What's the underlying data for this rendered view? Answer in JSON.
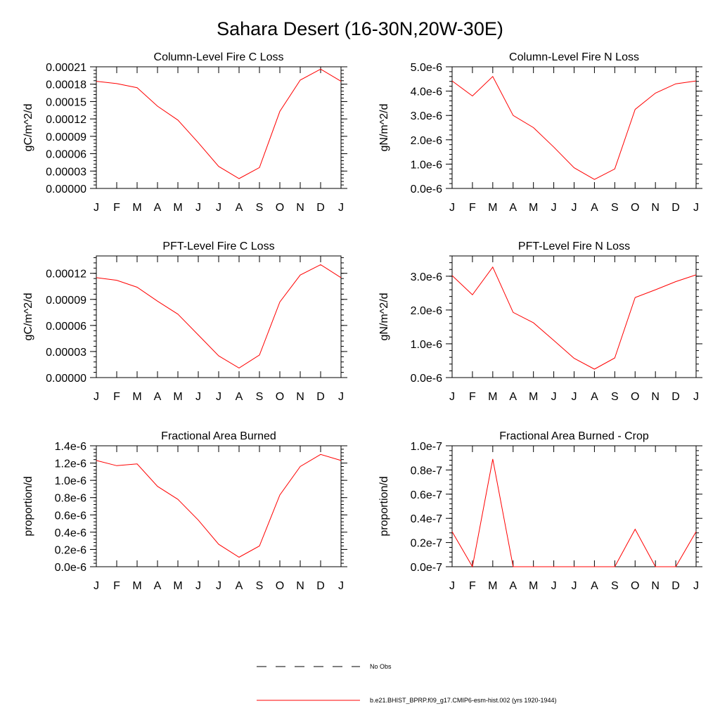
{
  "figure": {
    "title": "Sahara Desert (16-30N,20W-30E)"
  },
  "legend": {
    "items": [
      {
        "label": "No Obs",
        "style": "dashed",
        "color": "#000000"
      },
      {
        "label": "b.e21.BHIST_BPRP.f09_g17.CMIP6-esm-hist.002 (yrs 1920-1944)",
        "style": "solid",
        "color": "#ff0000"
      }
    ]
  },
  "chart_data": [
    {
      "type": "line",
      "title": "Column-Level Fire C Loss",
      "ylabel": "gC/m^2/d",
      "categories": [
        "J",
        "F",
        "M",
        "A",
        "M",
        "J",
        "J",
        "A",
        "S",
        "O",
        "N",
        "D",
        "J"
      ],
      "ylim": [
        0,
        0.00021
      ],
      "yticks": [
        0,
        3e-05,
        6e-05,
        9e-05,
        0.00012,
        0.00015,
        0.00018,
        0.00021
      ],
      "ytick_labels": [
        "0.00000",
        "0.00003",
        "0.00006",
        "0.00009",
        "0.00012",
        "0.00015",
        "0.00018",
        "0.00021"
      ],
      "series": [
        {
          "color": "#ff0000",
          "values": [
            0.000185,
            0.000181,
            0.000174,
            0.000142,
            0.000118,
            7.9e-05,
            3.8e-05,
            1.7e-05,
            3.6e-05,
            0.000133,
            0.000187,
            0.000206,
            0.000185
          ]
        }
      ]
    },
    {
      "type": "line",
      "title": "Column-Level Fire N Loss",
      "ylabel": "gN/m^2/d",
      "categories": [
        "J",
        "F",
        "M",
        "A",
        "M",
        "J",
        "J",
        "A",
        "S",
        "O",
        "N",
        "D",
        "J"
      ],
      "ylim": [
        0,
        5e-06
      ],
      "yticks": [
        0,
        1e-06,
        2e-06,
        3e-06,
        4e-06,
        5e-06
      ],
      "ytick_labels": [
        "0.0e-6",
        "1.0e-6",
        "2.0e-6",
        "3.0e-6",
        "4.0e-6",
        "5.0e-6"
      ],
      "series": [
        {
          "color": "#ff0000",
          "values": [
            4.42e-06,
            3.8e-06,
            4.6e-06,
            3e-06,
            2.5e-06,
            1.7e-06,
            8.5e-07,
            3.7e-07,
            8e-07,
            3.25e-06,
            3.92e-06,
            4.3e-06,
            4.42e-06
          ]
        }
      ]
    },
    {
      "type": "line",
      "title": "PFT-Level Fire C Loss",
      "ylabel": "gC/m^2/d",
      "categories": [
        "J",
        "F",
        "M",
        "A",
        "M",
        "J",
        "J",
        "A",
        "S",
        "O",
        "N",
        "D",
        "J"
      ],
      "ylim": [
        0,
        0.00014
      ],
      "yticks": [
        0,
        3e-05,
        6e-05,
        9e-05,
        0.00012
      ],
      "ytick_labels": [
        "0.00000",
        "0.00003",
        "0.00006",
        "0.00009",
        "0.00012"
      ],
      "series": [
        {
          "color": "#ff0000",
          "values": [
            0.000115,
            0.000112,
            0.000104,
            8.8e-05,
            7.3e-05,
            4.9e-05,
            2.5e-05,
            1.1e-05,
            2.6e-05,
            8.7e-05,
            0.000118,
            0.00013,
            0.000115
          ]
        }
      ]
    },
    {
      "type": "line",
      "title": "PFT-Level Fire N Loss",
      "ylabel": "gN/m^2/d",
      "categories": [
        "J",
        "F",
        "M",
        "A",
        "M",
        "J",
        "J",
        "A",
        "S",
        "O",
        "N",
        "D",
        "J"
      ],
      "ylim": [
        0,
        3.6e-06
      ],
      "yticks": [
        0,
        1e-06,
        2e-06,
        3e-06
      ],
      "ytick_labels": [
        "0.0e-6",
        "1.0e-6",
        "2.0e-6",
        "3.0e-6"
      ],
      "series": [
        {
          "color": "#ff0000",
          "values": [
            3.02e-06,
            2.45e-06,
            3.27e-06,
            1.93e-06,
            1.62e-06,
            1.1e-06,
            5.7e-07,
            2.5e-07,
            5.8e-07,
            2.37e-06,
            2.6e-06,
            2.84e-06,
            3.04e-06
          ]
        }
      ]
    },
    {
      "type": "line",
      "title": "Fractional Area Burned",
      "ylabel": "proportion/d",
      "categories": [
        "J",
        "F",
        "M",
        "A",
        "M",
        "J",
        "J",
        "A",
        "S",
        "O",
        "N",
        "D",
        "J"
      ],
      "ylim": [
        0,
        1.4e-06
      ],
      "yticks": [
        0,
        2e-07,
        4e-07,
        6e-07,
        8e-07,
        1e-06,
        1.2e-06,
        1.4e-06
      ],
      "ytick_labels": [
        "0.0e-6",
        "0.2e-6",
        "0.4e-6",
        "0.6e-6",
        "0.8e-6",
        "1.0e-6",
        "1.2e-6",
        "1.4e-6"
      ],
      "series": [
        {
          "color": "#ff0000",
          "values": [
            1.23e-06,
            1.17e-06,
            1.19e-06,
            9.3e-07,
            7.8e-07,
            5.4e-07,
            2.6e-07,
            1.1e-07,
            2.4e-07,
            8.3e-07,
            1.16e-06,
            1.3e-06,
            1.23e-06
          ]
        }
      ]
    },
    {
      "type": "line",
      "title": "Fractional Area Burned - Crop",
      "ylabel": "proportion/d",
      "categories": [
        "J",
        "F",
        "M",
        "A",
        "M",
        "J",
        "J",
        "A",
        "S",
        "O",
        "N",
        "D",
        "J"
      ],
      "ylim": [
        0,
        1e-07
      ],
      "yticks": [
        0,
        2e-08,
        4e-08,
        6e-08,
        8e-08,
        1e-07
      ],
      "ytick_labels": [
        "0.0e-7",
        "0.2e-7",
        "0.4e-7",
        "0.6e-7",
        "0.8e-7",
        "1.0e-7"
      ],
      "series": [
        {
          "color": "#ff0000",
          "values": [
            2.9e-08,
            0.0,
            8.9e-08,
            0.0,
            0.0,
            0.0,
            0.0,
            0.0,
            0.0,
            3.1e-08,
            0.0,
            0.0,
            2.9e-08
          ]
        }
      ]
    }
  ]
}
